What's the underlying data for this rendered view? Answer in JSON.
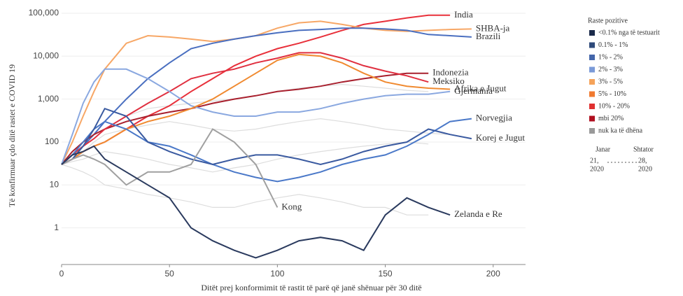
{
  "chart_data": {
    "type": "line",
    "x_label": "Ditët prej konformimit të rastit të parë që janë shënuar për 30 ditë",
    "y_label": "Të konfirmuar çdo ditë rastet e COVID 19",
    "log_y": true,
    "xlim": [
      0,
      215
    ],
    "ylim": [
      0.14,
      140000
    ],
    "xticks": [
      0,
      50,
      100,
      150,
      200
    ],
    "yticks": [
      {
        "value": 100000,
        "label": "100,000"
      },
      {
        "value": 10000,
        "label": "10,000"
      },
      {
        "value": 1000,
        "label": "1,000"
      },
      100,
      10,
      1
    ],
    "x": [
      0,
      5,
      10,
      15,
      20,
      30,
      40,
      50,
      60,
      70,
      80,
      90,
      100,
      110,
      120,
      130,
      140,
      150,
      160,
      170,
      180,
      190
    ],
    "series": [
      {
        "color": "#dddddd",
        "values": [
          30,
          40,
          60,
          100,
          150,
          200,
          250,
          300,
          250,
          200,
          180,
          200,
          250,
          300,
          350,
          300,
          250,
          200,
          180,
          160,
          150,
          null
        ]
      },
      {
        "color": "#dddddd",
        "values": [
          30,
          35,
          40,
          50,
          60,
          50,
          40,
          30,
          25,
          20,
          25,
          30,
          40,
          50,
          60,
          70,
          80,
          90,
          100,
          90,
          null,
          null
        ]
      },
      {
        "color": "#dddddd",
        "values": [
          30,
          50,
          80,
          120,
          200,
          400,
          600,
          700,
          800,
          900,
          1000,
          1200,
          1500,
          1800,
          2000,
          2200,
          2000,
          1800,
          1600,
          1500,
          null,
          null
        ]
      },
      {
        "color": "#dddddd",
        "values": [
          30,
          25,
          20,
          15,
          10,
          8,
          6,
          5,
          4,
          3,
          3,
          4,
          5,
          6,
          5,
          4,
          3,
          3,
          2,
          2,
          null,
          null
        ]
      },
      {
        "name": "India",
        "color": "#e8303a",
        "values": [
          30,
          40,
          60,
          80,
          100,
          200,
          400,
          700,
          1500,
          3000,
          6000,
          10000,
          15000,
          20000,
          28000,
          40000,
          55000,
          65000,
          78000,
          90000,
          90000,
          null
        ]
      },
      {
        "name": "SHBA-ja",
        "color": "#f7a766",
        "values": [
          30,
          100,
          400,
          1500,
          5000,
          20000,
          30000,
          28000,
          25000,
          22000,
          25000,
          30000,
          45000,
          60000,
          65000,
          55000,
          45000,
          40000,
          38000,
          40000,
          42000,
          43000
        ]
      },
      {
        "name": "Brazili",
        "color": "#4a6fc0",
        "values": [
          30,
          50,
          80,
          150,
          300,
          1000,
          3000,
          7000,
          15000,
          20000,
          25000,
          30000,
          35000,
          40000,
          42000,
          45000,
          45000,
          43000,
          40000,
          32000,
          30000,
          28000
        ]
      },
      {
        "name": "Indonezia",
        "color": "#a8202e",
        "values": [
          30,
          60,
          100,
          150,
          200,
          300,
          400,
          500,
          600,
          800,
          1000,
          1200,
          1500,
          1700,
          2000,
          2500,
          3000,
          3500,
          4000,
          4000,
          null,
          null
        ]
      },
      {
        "name": "Meksiko",
        "color": "#e03040",
        "values": [
          30,
          50,
          80,
          120,
          200,
          400,
          800,
          1500,
          3000,
          4000,
          5000,
          7000,
          9000,
          12000,
          12000,
          9000,
          6000,
          4500,
          3500,
          2500,
          null,
          null
        ]
      },
      {
        "name": "Gjermania",
        "color": "#8aa8e0",
        "values": [
          30,
          150,
          800,
          2500,
          5000,
          5000,
          3000,
          1500,
          700,
          500,
          400,
          400,
          500,
          500,
          600,
          800,
          1000,
          1200,
          1300,
          1300,
          1500,
          null
        ]
      },
      {
        "name": "Afrika e Jugut",
        "color": "#f08a30",
        "values": [
          30,
          40,
          60,
          80,
          100,
          200,
          300,
          400,
          600,
          1000,
          2000,
          4000,
          8000,
          11000,
          10000,
          7000,
          4000,
          2500,
          2000,
          1800,
          1700,
          null
        ]
      },
      {
        "name": "Norvegjia",
        "color": "#4a78c8",
        "values": [
          30,
          50,
          100,
          200,
          300,
          200,
          100,
          80,
          50,
          30,
          20,
          15,
          12,
          15,
          20,
          30,
          40,
          50,
          80,
          150,
          300,
          350
        ]
      },
      {
        "name": "Korej e Jugut",
        "color": "#3a5aa0",
        "values": [
          30,
          40,
          80,
          200,
          600,
          400,
          100,
          60,
          40,
          30,
          40,
          50,
          50,
          40,
          30,
          40,
          60,
          80,
          100,
          200,
          150,
          120
        ]
      },
      {
        "name": "Kong",
        "color": "#a0a0a0",
        "values": [
          30,
          40,
          50,
          40,
          30,
          10,
          20,
          20,
          30,
          200,
          100,
          30,
          3,
          null,
          null,
          null,
          null,
          null,
          null,
          null,
          null,
          null
        ]
      },
      {
        "name": "Zelanda e Re",
        "color": "#2a3a5e",
        "values": [
          30,
          50,
          60,
          80,
          40,
          20,
          10,
          5,
          1,
          0.5,
          0.3,
          0.2,
          0.3,
          0.5,
          0.6,
          0.5,
          0.3,
          2,
          5,
          3,
          2,
          null
        ]
      }
    ],
    "legend": {
      "title": "Raste pozitive",
      "items": [
        {
          "label": "<0.1% nga të testuarit",
          "color": "#1a2a4a"
        },
        {
          "label": "0.1% - 1%",
          "color": "#2e4a7a"
        },
        {
          "label": "1% - 2%",
          "color": "#4466aa"
        },
        {
          "label": "2% - 3%",
          "color": "#7a9ad8"
        },
        {
          "label": "3% - 5%",
          "color": "#f5a35a"
        },
        {
          "label": "5% - 10%",
          "color": "#f07a30"
        },
        {
          "label": "10% - 20%",
          "color": "#e03030"
        },
        {
          "label": "mbi 20%",
          "color": "#b01020"
        },
        {
          "label": "nuk ka të dhëna",
          "color": "#999999"
        }
      ]
    },
    "timeline": {
      "start": "Janar",
      "start_day": "21,",
      "start_year": "2020",
      "end": "Shtator",
      "end_day": "28,",
      "end_year": "2020"
    }
  }
}
